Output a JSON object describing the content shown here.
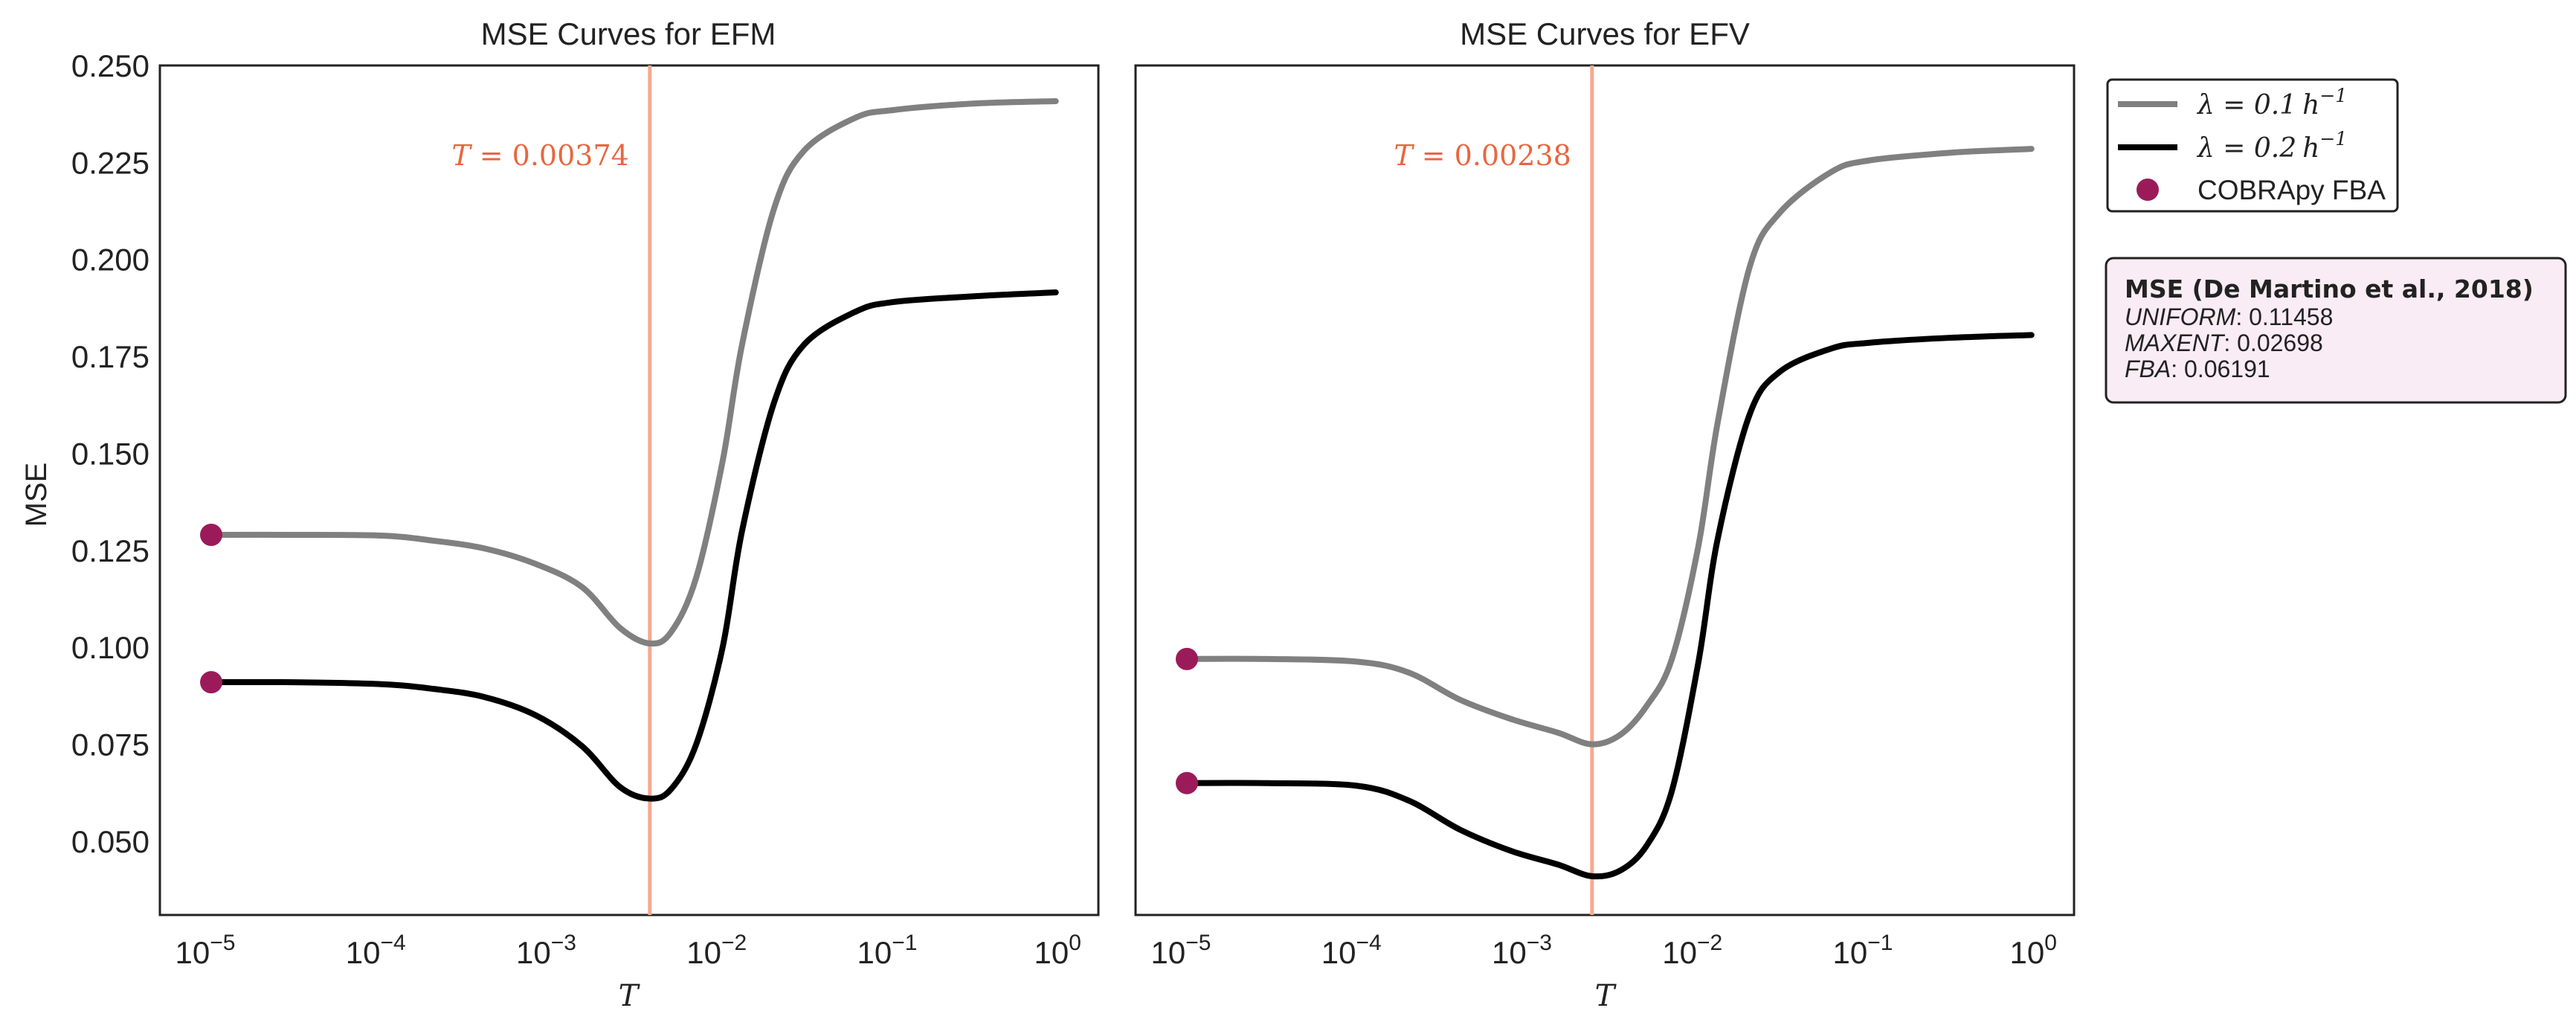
{
  "chart_data": [
    {
      "type": "line",
      "title": "MSE Curves for EFM",
      "xlabel": "T",
      "ylabel": "MSE",
      "xscale": "log",
      "xlim": [
        5e-06,
        1.6
      ],
      "ylim": [
        0.031,
        0.25
      ],
      "yticks": [
        "0.050",
        "0.075",
        "0.100",
        "0.125",
        "0.150",
        "0.175",
        "0.200",
        "0.225",
        "0.250"
      ],
      "xticks": [
        {
          "base": "10",
          "exp": "−5"
        },
        {
          "base": "10",
          "exp": "−4"
        },
        {
          "base": "10",
          "exp": "−3"
        },
        {
          "base": "10",
          "exp": "−2"
        },
        {
          "base": "10",
          "exp": "−1"
        },
        {
          "base": "10",
          "exp": "0"
        }
      ],
      "vline": {
        "x": 0.00374,
        "label": "T = 0.00374",
        "color": "#f4a98f"
      },
      "series": [
        {
          "name": "λ = 0.1 h⁻¹",
          "color": "#808080",
          "x": [
            1e-05,
            3e-05,
            0.0001,
            0.0002,
            0.0004,
            0.0008,
            0.0015,
            0.0025,
            0.00374,
            0.005,
            0.007,
            0.01,
            0.013,
            0.02,
            0.03,
            0.06,
            0.1,
            0.3,
            0.9
          ],
          "y": [
            0.129,
            0.129,
            0.1288,
            0.1275,
            0.1255,
            0.1215,
            0.1155,
            0.105,
            0.101,
            0.104,
            0.118,
            0.148,
            0.178,
            0.213,
            0.228,
            0.2365,
            0.2385,
            0.2402,
            0.2408
          ]
        },
        {
          "name": "λ = 0.2 h⁻¹",
          "color": "#000000",
          "x": [
            1e-05,
            3e-05,
            0.0001,
            0.0002,
            0.0004,
            0.0008,
            0.0015,
            0.0025,
            0.00374,
            0.005,
            0.007,
            0.01,
            0.013,
            0.02,
            0.03,
            0.06,
            0.1,
            0.3,
            0.9
          ],
          "y": [
            0.091,
            0.091,
            0.0905,
            0.0893,
            0.0872,
            0.0825,
            0.0745,
            0.064,
            0.061,
            0.0635,
            0.075,
            0.1,
            0.13,
            0.163,
            0.178,
            0.1865,
            0.189,
            0.1905,
            0.1915
          ]
        }
      ],
      "points": [
        {
          "name": "COBRApy FBA",
          "x": 1e-05,
          "y": 0.129
        },
        {
          "name": "COBRApy FBA",
          "x": 1e-05,
          "y": 0.091
        }
      ]
    },
    {
      "type": "line",
      "title": "MSE Curves for EFV",
      "xlabel": "T",
      "xscale": "log",
      "xlim": [
        5e-06,
        1.6
      ],
      "ylim": [
        0.031,
        0.25
      ],
      "xticks": [
        {
          "base": "10",
          "exp": "−5"
        },
        {
          "base": "10",
          "exp": "−4"
        },
        {
          "base": "10",
          "exp": "−3"
        },
        {
          "base": "10",
          "exp": "−2"
        },
        {
          "base": "10",
          "exp": "−1"
        },
        {
          "base": "10",
          "exp": "0"
        }
      ],
      "vline": {
        "x": 0.00238,
        "label": "T = 0.00238",
        "color": "#f4a98f"
      },
      "series": [
        {
          "name": "λ = 0.1 h⁻¹",
          "color": "#808080",
          "x": [
            1e-05,
            3e-05,
            0.0001,
            0.0002,
            0.0004,
            0.0008,
            0.0015,
            0.00238,
            0.0035,
            0.005,
            0.007,
            0.01,
            0.013,
            0.02,
            0.03,
            0.06,
            0.1,
            0.3,
            0.9
          ],
          "y": [
            0.097,
            0.097,
            0.0963,
            0.0935,
            0.0865,
            0.0815,
            0.078,
            0.075,
            0.0775,
            0.085,
            0.097,
            0.126,
            0.158,
            0.198,
            0.212,
            0.2225,
            0.2255,
            0.2275,
            0.2285
          ]
        },
        {
          "name": "λ = 0.2 h⁻¹",
          "color": "#000000",
          "x": [
            1e-05,
            3e-05,
            0.0001,
            0.0002,
            0.0004,
            0.0008,
            0.0015,
            0.00238,
            0.0035,
            0.005,
            0.007,
            0.01,
            0.013,
            0.02,
            0.03,
            0.06,
            0.1,
            0.3,
            0.9
          ],
          "y": [
            0.065,
            0.065,
            0.0643,
            0.0605,
            0.053,
            0.0475,
            0.044,
            0.041,
            0.0425,
            0.049,
            0.063,
            0.096,
            0.128,
            0.16,
            0.171,
            0.177,
            0.1785,
            0.1798,
            0.1805
          ]
        }
      ],
      "points": [
        {
          "name": "COBRApy FBA",
          "x": 1e-05,
          "y": 0.097
        },
        {
          "name": "COBRApy FBA",
          "x": 1e-05,
          "y": 0.065
        }
      ]
    }
  ],
  "legend": {
    "items": [
      {
        "type": "line",
        "color": "#808080",
        "label_prefix": "λ = 0.1",
        "label_unit": "h",
        "label_sup": "−1"
      },
      {
        "type": "line",
        "color": "#000000",
        "label_prefix": "λ = 0.2",
        "label_unit": "h",
        "label_sup": "−1"
      },
      {
        "type": "marker",
        "color": "#9b1b5a",
        "label": "COBRApy FBA"
      }
    ]
  },
  "mse_box": {
    "title": "MSE (De Martino et al.,  2018)",
    "rows": [
      {
        "key": "UNIFORM",
        "value": ": 0.11458"
      },
      {
        "key": "MAXENT",
        "value": ": 0.02698"
      },
      {
        "key": "FBA",
        "value": ": 0.06191"
      }
    ],
    "background": "#f9ecf4"
  },
  "marker_color": "#9b1b5a"
}
